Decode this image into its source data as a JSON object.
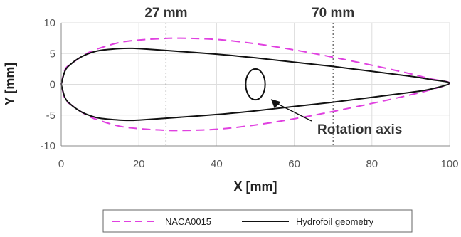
{
  "chart_data": {
    "type": "line",
    "xlabel": "X [mm]",
    "ylabel": "Y [mm]",
    "xlim": [
      0,
      100
    ],
    "ylim": [
      -10,
      10
    ],
    "xticks": [
      0,
      20,
      40,
      60,
      80,
      100
    ],
    "yticks": [
      -10,
      -5,
      0,
      5,
      10
    ],
    "grid": true,
    "legend_position": "bottom",
    "colors": {
      "naca": "#e040e0",
      "hydrofoil": "#111111",
      "grid": "#dddddd",
      "axis": "#888888"
    },
    "series": [
      {
        "name": "NACA0015",
        "style": "dashed",
        "x": [
          0,
          1,
          2.5,
          5,
          7.5,
          10,
          15,
          20,
          25,
          30,
          40,
          50,
          60,
          70,
          80,
          90,
          95,
          100
        ],
        "y_upper": [
          0,
          2.4,
          3.3,
          4.4,
          5.3,
          5.9,
          6.8,
          7.2,
          7.4,
          7.5,
          7.3,
          6.6,
          5.6,
          4.4,
          3.1,
          1.7,
          0.9,
          0.2
        ],
        "y_lower": [
          0,
          -2.4,
          -3.3,
          -4.4,
          -5.3,
          -5.9,
          -6.8,
          -7.2,
          -7.4,
          -7.5,
          -7.3,
          -6.6,
          -5.6,
          -4.4,
          -3.1,
          -1.7,
          -0.9,
          -0.2
        ]
      },
      {
        "name": "Hydrofoil geometry",
        "style": "solid",
        "x": [
          0,
          1,
          2.5,
          5,
          7.5,
          10,
          15,
          18,
          20,
          27,
          40,
          50,
          60,
          70,
          80,
          90,
          95,
          100
        ],
        "y_upper": [
          0,
          2.2,
          3.3,
          4.4,
          5.1,
          5.5,
          5.8,
          5.85,
          5.8,
          5.5,
          4.9,
          4.3,
          3.6,
          2.9,
          2.1,
          1.3,
          0.8,
          0.2
        ],
        "y_lower": [
          0,
          -2.2,
          -3.3,
          -4.4,
          -5.1,
          -5.5,
          -5.8,
          -5.85,
          -5.8,
          -5.5,
          -4.9,
          -4.3,
          -3.6,
          -2.9,
          -2.1,
          -1.3,
          -0.8,
          -0.2
        ]
      }
    ],
    "reference_lines": [
      {
        "x": 27,
        "label": "27 mm"
      },
      {
        "x": 70,
        "label": "70 mm"
      }
    ],
    "rotation_axis": {
      "center": [
        50,
        0
      ],
      "radius": 2.5,
      "arrow_target": [
        54,
        -2.4
      ],
      "label": "Rotation axis"
    }
  }
}
